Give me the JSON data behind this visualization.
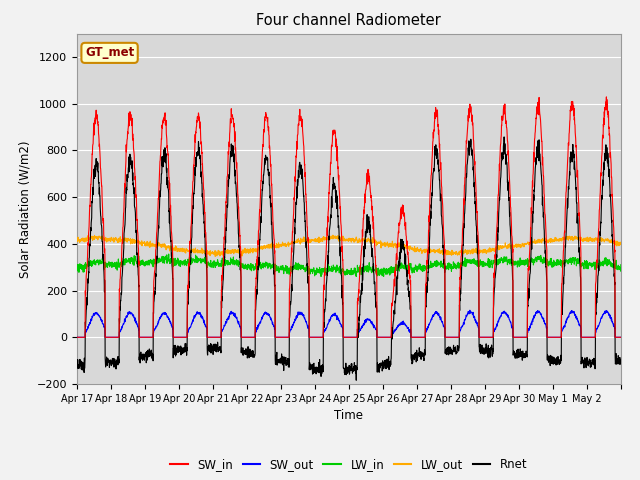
{
  "title": "Four channel Radiometer",
  "xlabel": "Time",
  "ylabel": "Solar Radiation (W/m2)",
  "ylim": [
    -200,
    1300
  ],
  "yticks": [
    -200,
    0,
    200,
    400,
    600,
    800,
    1000,
    1200
  ],
  "x_labels": [
    "Apr 17",
    "Apr 18",
    "Apr 19",
    "Apr 20",
    "Apr 21",
    "Apr 22",
    "Apr 23",
    "Apr 24",
    "Apr 25",
    "Apr 26",
    "Apr 27",
    "Apr 28",
    "Apr 29",
    "Apr 30",
    "May 1",
    "May 2"
  ],
  "n_days": 16,
  "colors": {
    "SW_in": "#ff0000",
    "SW_out": "#0000ff",
    "LW_in": "#00cc00",
    "LW_out": "#ffaa00",
    "Rnet": "#000000"
  },
  "legend_label": "GT_met",
  "fig_bg": "#f2f2f2",
  "plot_bg": "#d8d8d8",
  "grid_color": "#ffffff"
}
